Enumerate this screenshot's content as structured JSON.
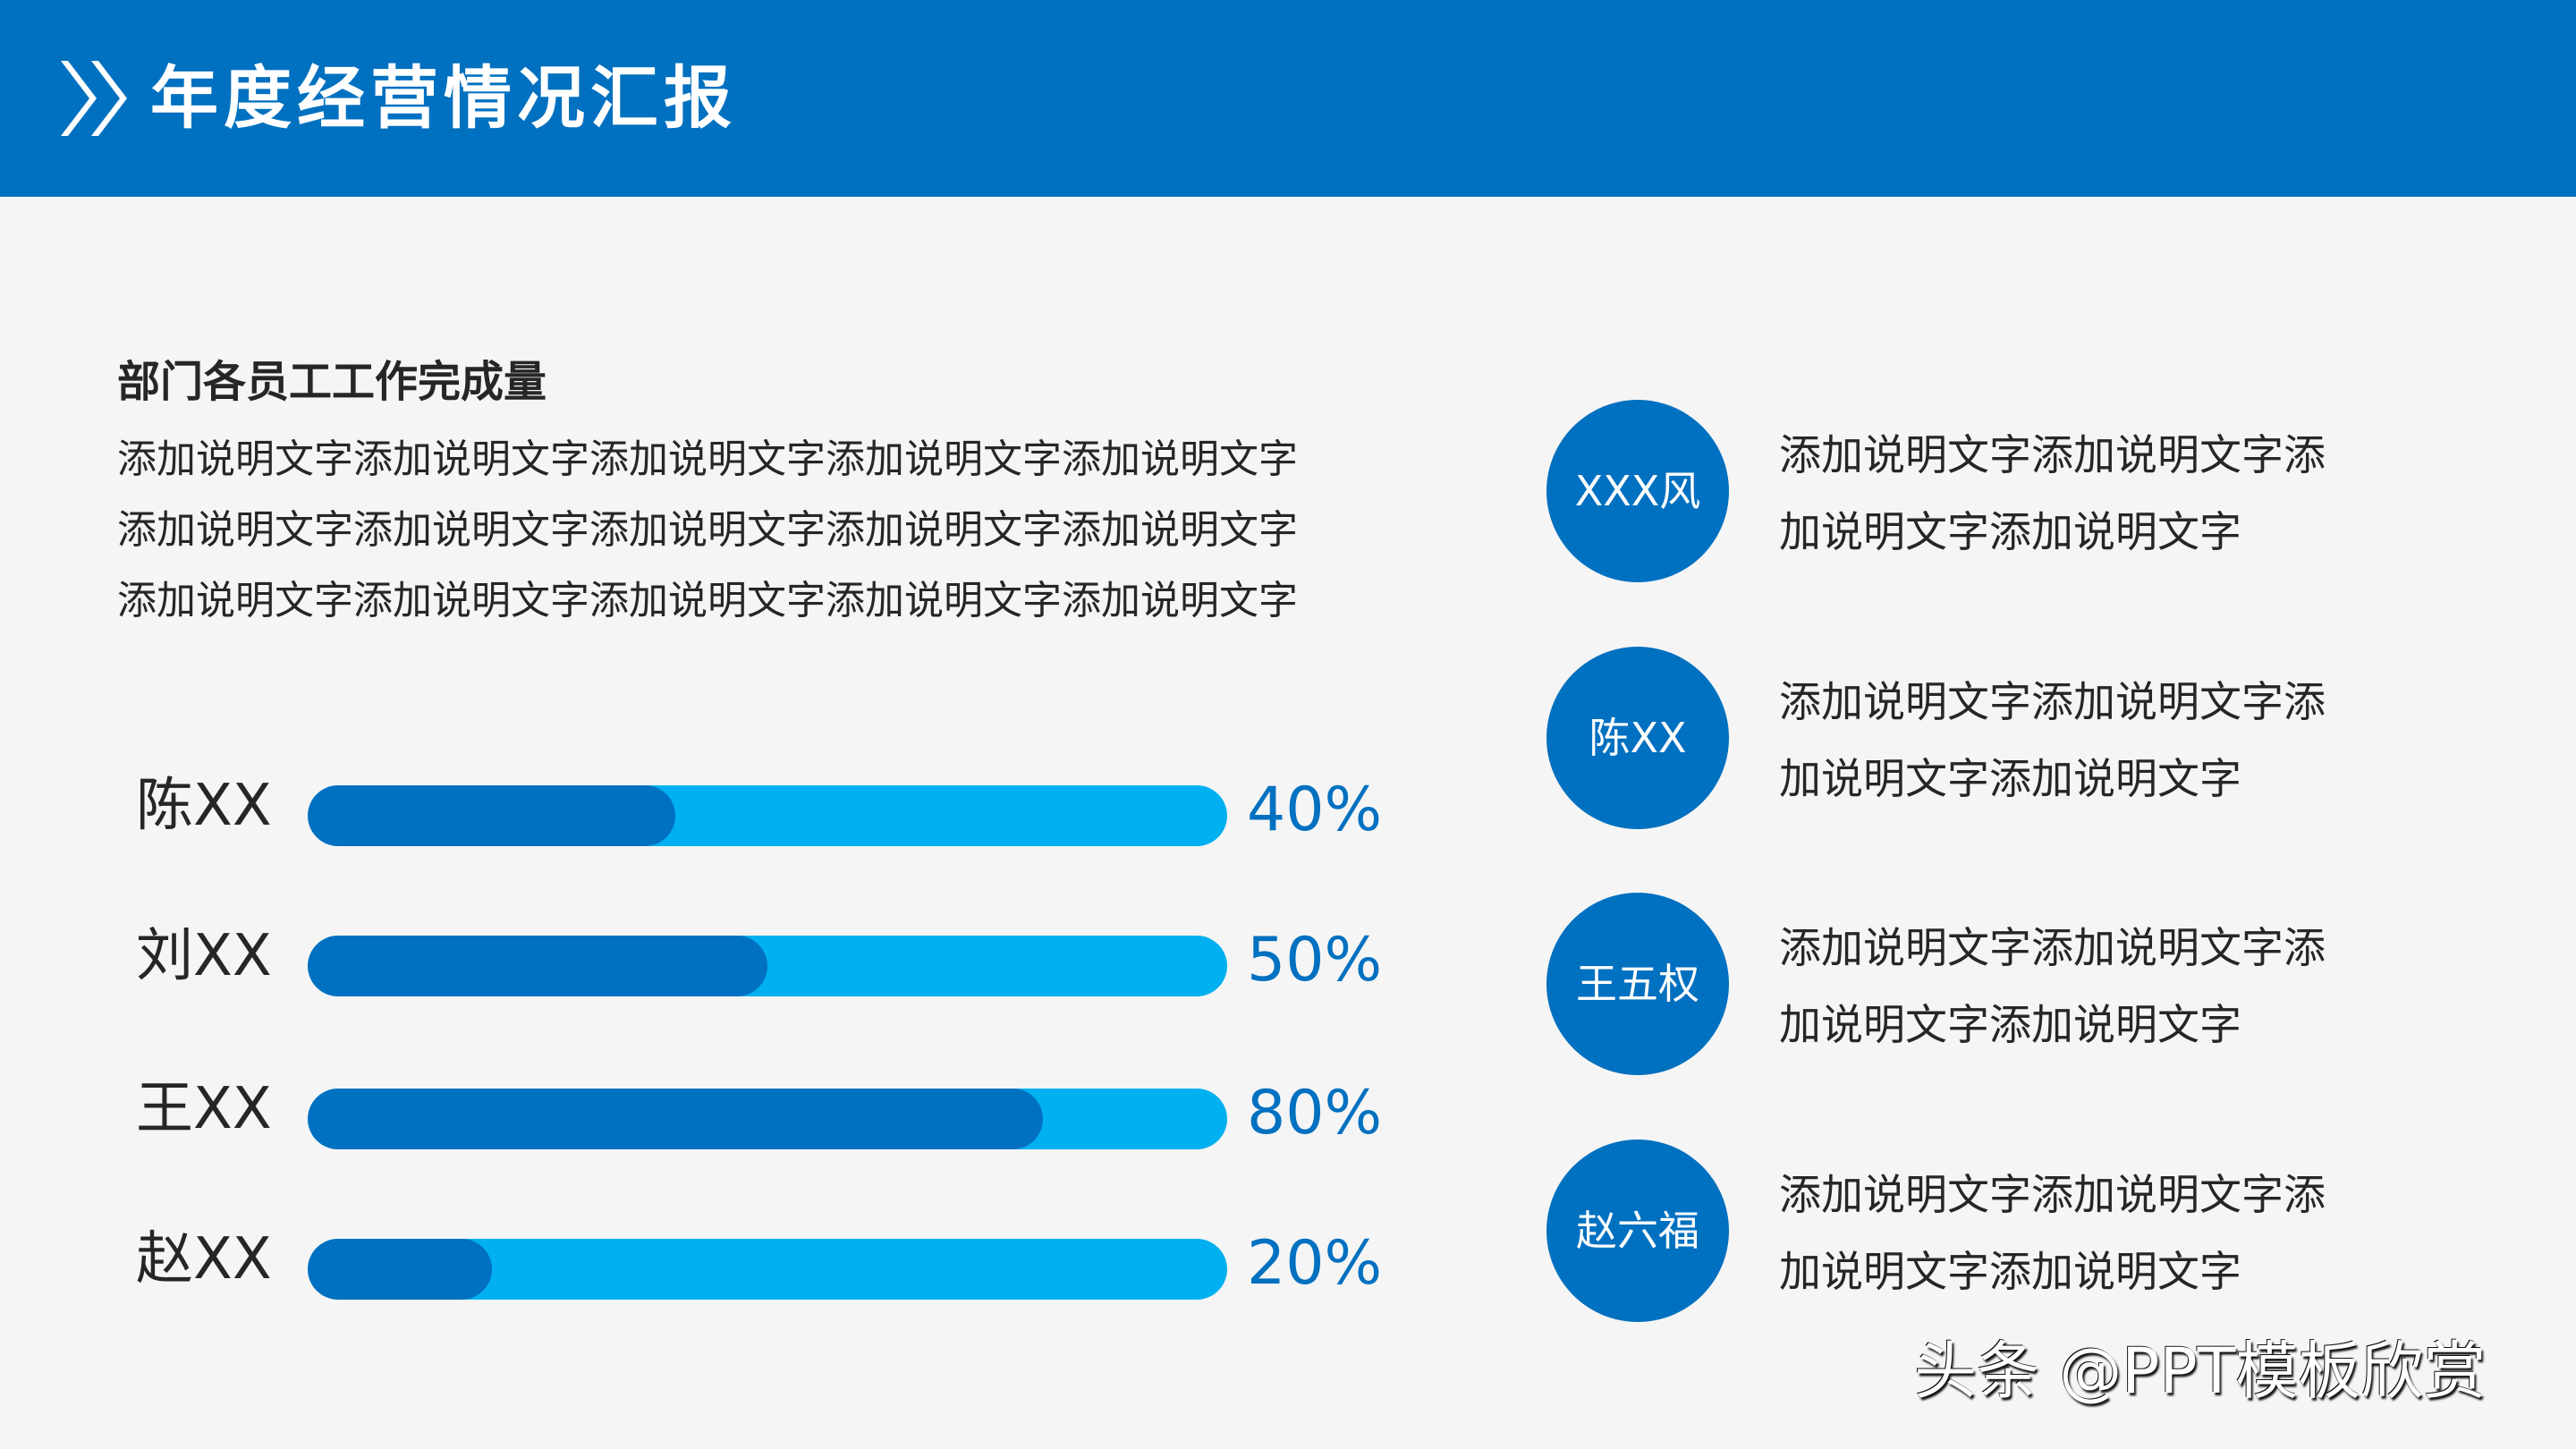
{
  "header": {
    "icon": "double-chevron-right-icon",
    "title": "年度经营情况汇报",
    "background_color": "#0070C0"
  },
  "section": {
    "title": "部门各员工工作完成量",
    "paragraph_lines": [
      "添加说明文字添加说明文字添加说明文字添加说明文字添加说明文字",
      "添加说明文字添加说明文字添加说明文字添加说明文字添加说明文字",
      "添加说明文字添加说明文字添加说明文字添加说明文字添加说明文字"
    ]
  },
  "progress": {
    "track_color": "#00B0F0",
    "fill_color": "#0070C0",
    "items": [
      {
        "name": "陈XX",
        "value": 40,
        "label": "40%"
      },
      {
        "name": "刘XX",
        "value": 50,
        "label": "50%"
      },
      {
        "name": "王XX",
        "value": 80,
        "label": "80%"
      },
      {
        "name": "赵XX",
        "value": 20,
        "label": "20%"
      }
    ]
  },
  "people": [
    {
      "name": "XXX风",
      "desc_lines": [
        "添加说明文字添加说明文字添",
        "加说明文字添加说明文字"
      ]
    },
    {
      "name": "陈XX",
      "desc_lines": [
        "添加说明文字添加说明文字添",
        "加说明文字添加说明文字"
      ]
    },
    {
      "name": "王五权",
      "desc_lines": [
        "添加说明文字添加说明文字添",
        "加说明文字添加说明文字"
      ]
    },
    {
      "name": "赵六福",
      "desc_lines": [
        "添加说明文字添加说明文字添",
        "加说明文字添加说明文字"
      ]
    }
  ],
  "watermark": "头条 @PPT模板欣赏",
  "chart_data": {
    "type": "bar",
    "orientation": "horizontal",
    "title": "部门各员工工作完成量",
    "categories": [
      "陈XX",
      "刘XX",
      "王XX",
      "赵XX"
    ],
    "values": [
      40,
      50,
      80,
      20
    ],
    "value_labels": [
      "40%",
      "50%",
      "80%",
      "20%"
    ],
    "xlabel": "",
    "ylabel": "",
    "xlim": [
      0,
      100
    ],
    "unit": "%",
    "grid": false,
    "legend": null
  }
}
